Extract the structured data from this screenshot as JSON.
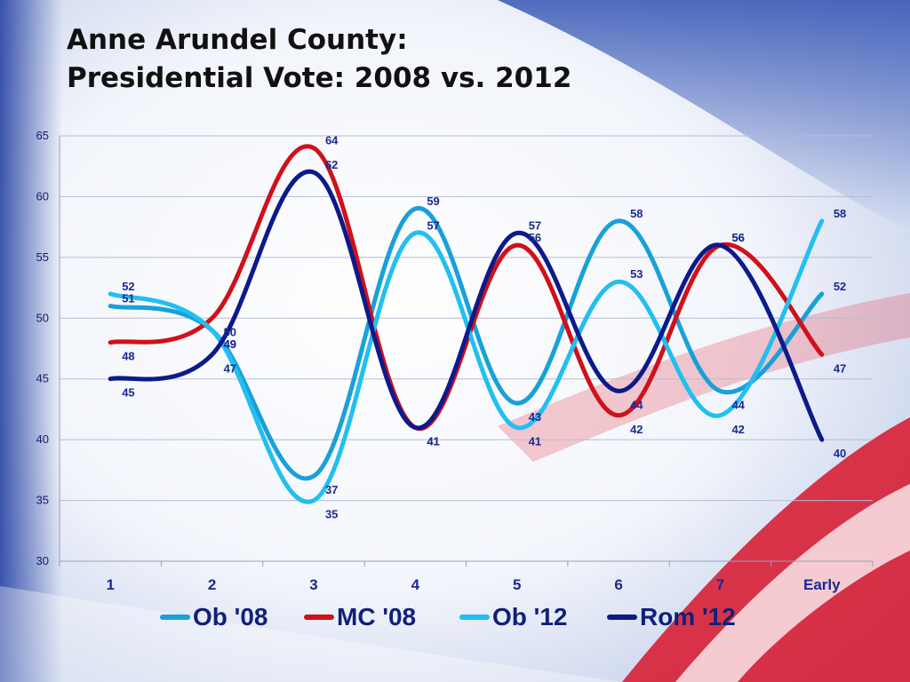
{
  "title": {
    "line1": "Anne Arundel County:",
    "line2": "Presidential Vote: 2008 vs. 2012"
  },
  "chart_data": {
    "type": "line",
    "categories": [
      "1",
      "2",
      "3",
      "4",
      "5",
      "6",
      "7",
      "Early"
    ],
    "ylim": [
      30,
      65
    ],
    "yticks": [
      30,
      35,
      40,
      45,
      50,
      55,
      60,
      65
    ],
    "grid": true,
    "legend_position": "bottom",
    "smooth": true,
    "series": [
      {
        "name": "Ob '08",
        "color": "#1aa0d8",
        "values": [
          51,
          49,
          37,
          59,
          43,
          58,
          44,
          52
        ]
      },
      {
        "name": "MC '08",
        "color": "#d0101a",
        "values": [
          48,
          50,
          64,
          41,
          56,
          42,
          56,
          47
        ]
      },
      {
        "name": "Ob '12",
        "color": "#22bff0",
        "values": [
          52,
          49,
          35,
          57,
          41,
          53,
          42,
          58
        ]
      },
      {
        "name": "Rom '12",
        "color": "#0d1a8a",
        "values": [
          45,
          47,
          62,
          41,
          57,
          44,
          56,
          40
        ]
      }
    ]
  }
}
